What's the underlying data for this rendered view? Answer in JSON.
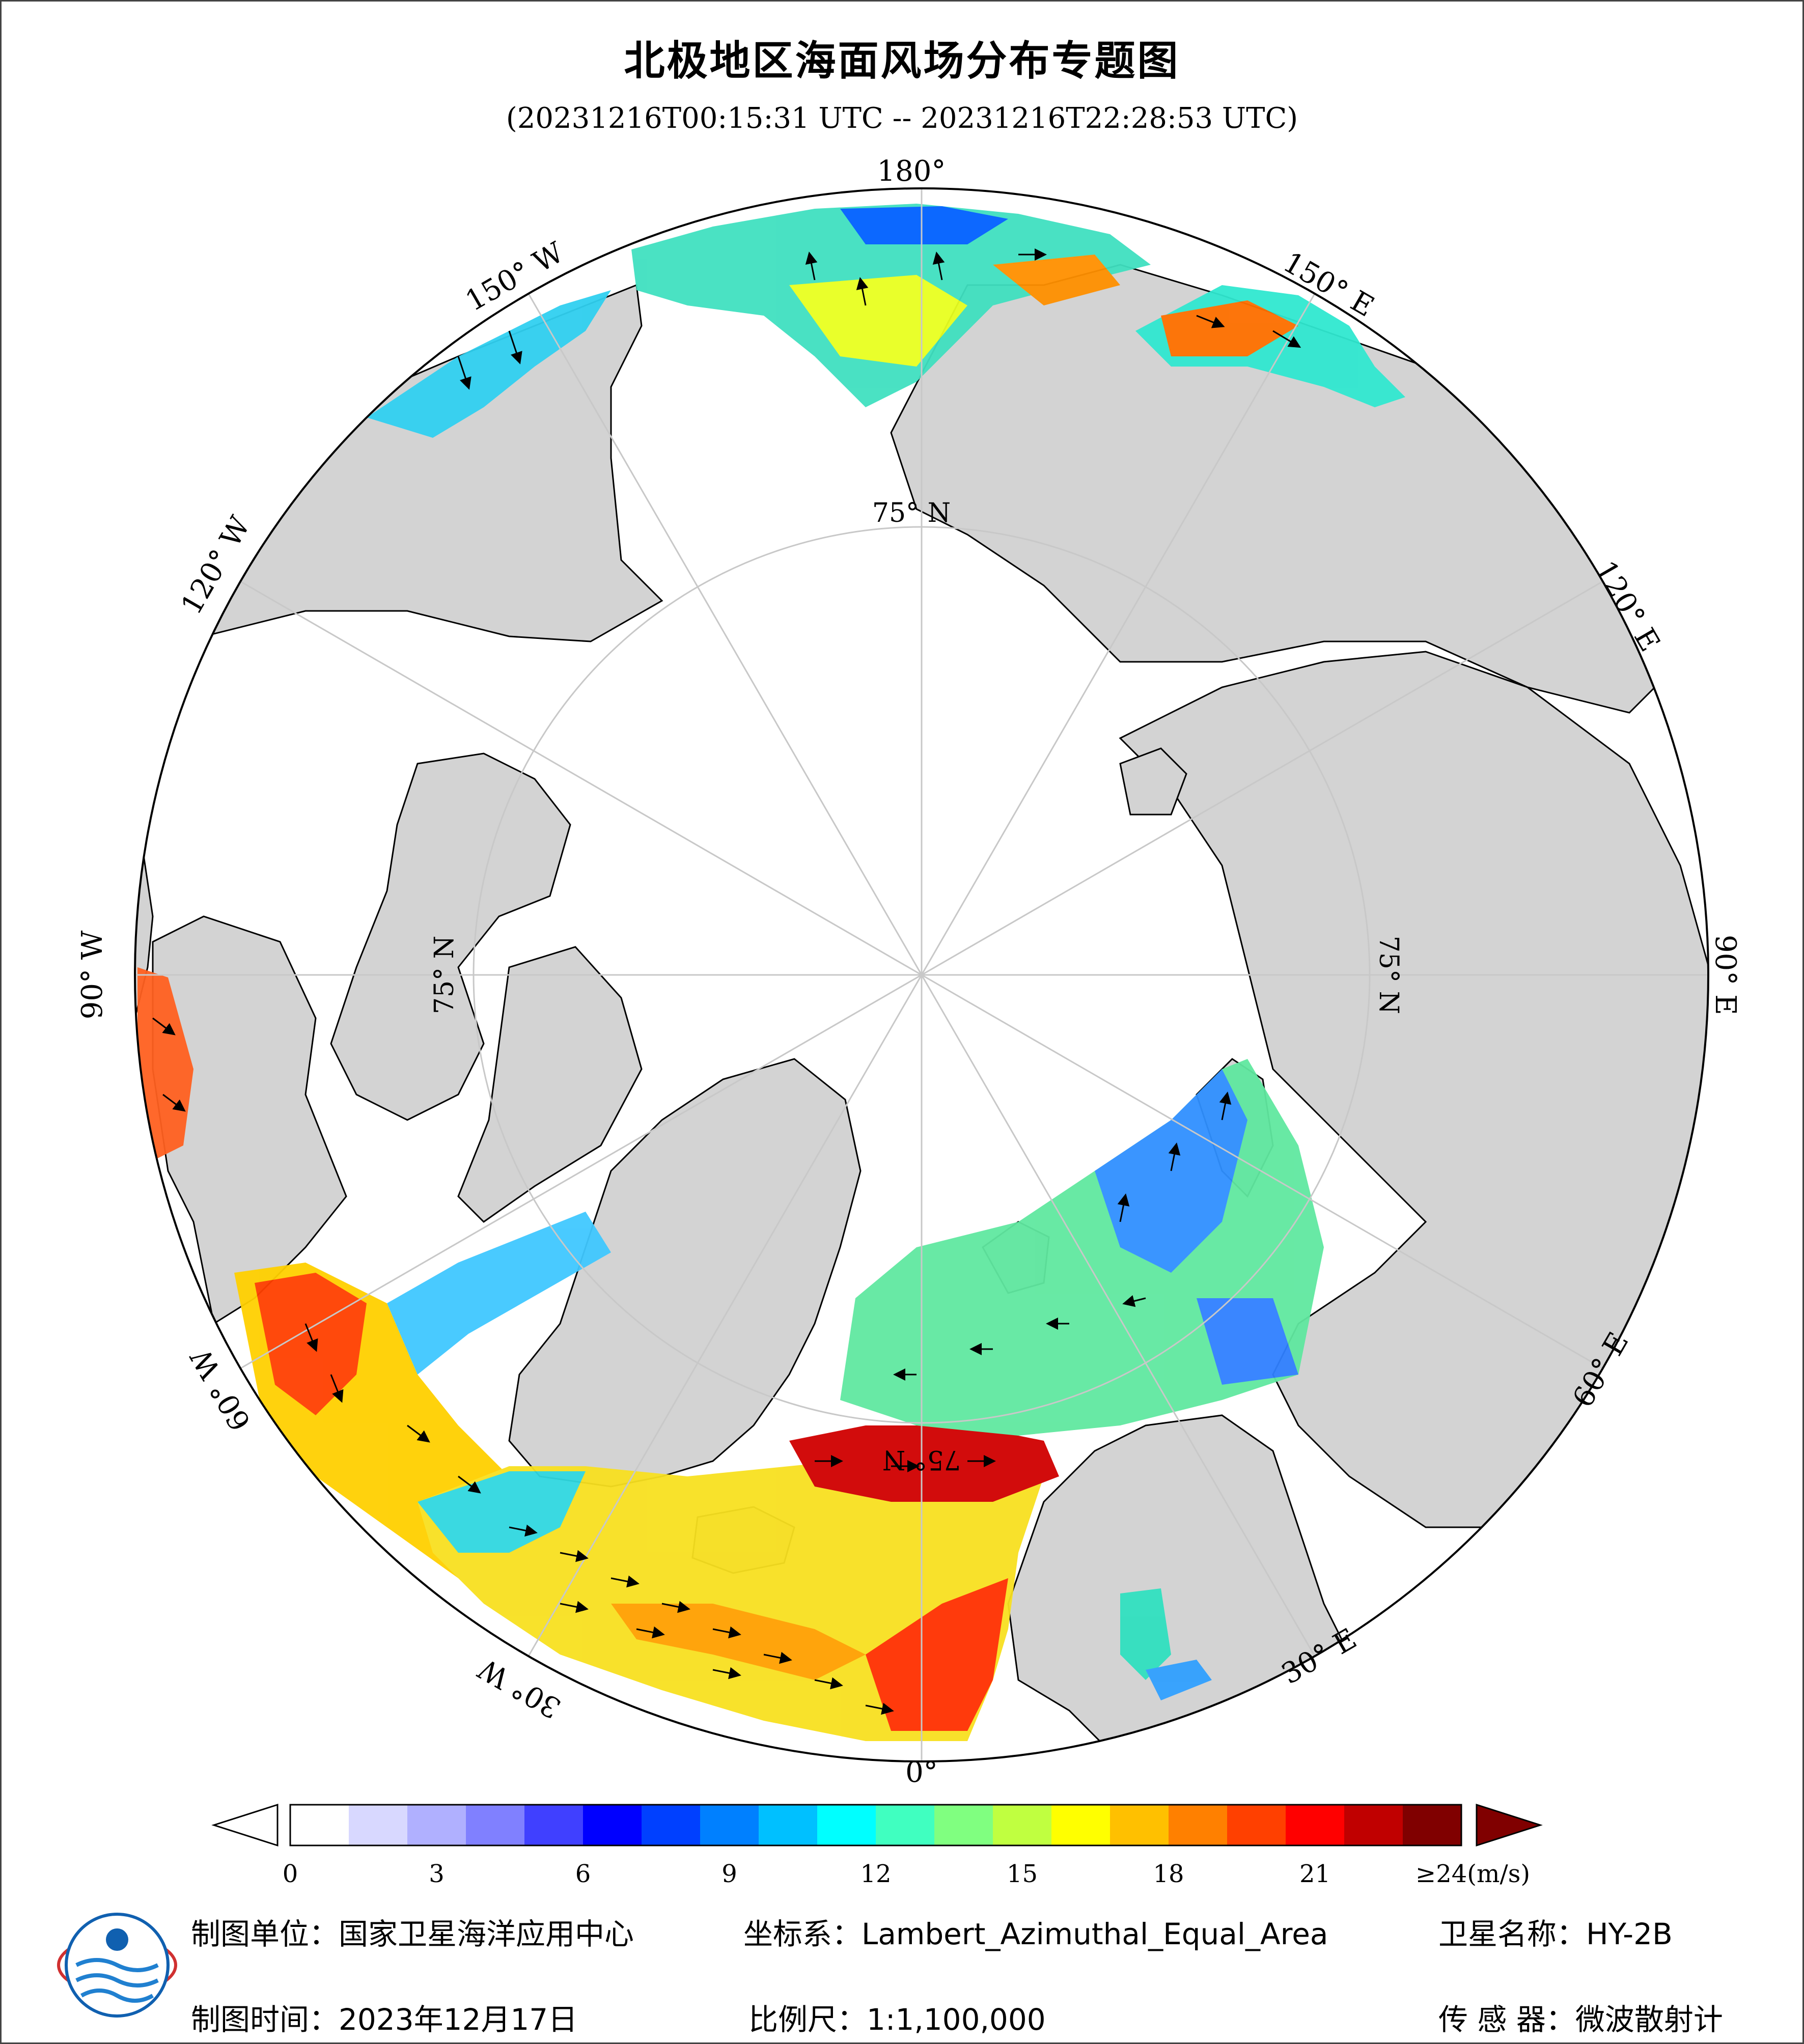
{
  "title": "北极地区海面风场分布专题图",
  "subtitle": "(20231216T00:15:31 UTC -- 20231216T22:28:53 UTC)",
  "map": {
    "projection": "Lambert_Azimuthal_Equal_Area",
    "center": "North Pole",
    "longitude_labels": [
      "180°",
      "150° E",
      "120° E",
      "90° E",
      "60° E",
      "30° E",
      "0°",
      "30° W",
      "60° W",
      "90° W",
      "120° W",
      "150° W"
    ],
    "latitude_labels": [
      "75° N",
      "75° N",
      "75° N",
      "75° N"
    ],
    "colors": {
      "land": "#d3d3d3",
      "sea_ice": "#ffffff",
      "outline": "#000000",
      "graticule": "#c8c8c8"
    }
  },
  "colorbar": {
    "tick_labels": [
      "0",
      "3",
      "6",
      "9",
      "12",
      "15",
      "18",
      "21",
      "≥24(m/s)"
    ],
    "min": 0,
    "max": 24,
    "unit": "m/s",
    "colors": [
      "#ffffff",
      "#d8d8ff",
      "#b0b0ff",
      "#8080ff",
      "#4040ff",
      "#0000ff",
      "#0040ff",
      "#0080ff",
      "#00c0ff",
      "#00ffff",
      "#40ffc0",
      "#80ff80",
      "#c0ff40",
      "#ffff00",
      "#ffc000",
      "#ff8000",
      "#ff4000",
      "#ff0000",
      "#c00000",
      "#800000"
    ]
  },
  "footer": {
    "org": "制图单位：国家卫星海洋应用中心",
    "coord": "坐标系：Lambert_Azimuthal_Equal_Area",
    "satellite": "卫星名称：HY-2B",
    "date": "制图时间：2023年12月17日",
    "scale": "比例尺：1:1,100,000",
    "sensor": "传 感 器：微波散射计"
  }
}
